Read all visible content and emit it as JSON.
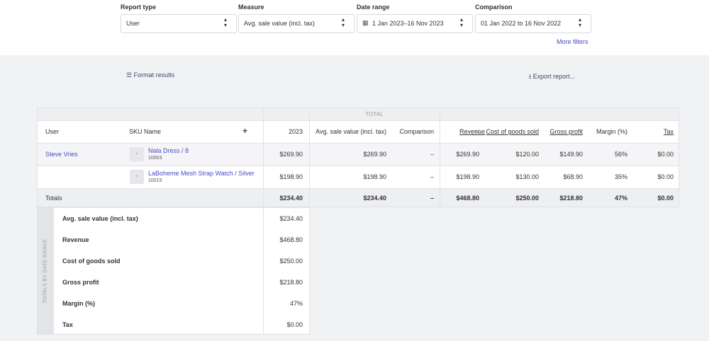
{
  "filters": [
    {
      "label": "Report type",
      "value": "User"
    },
    {
      "label": "Measure",
      "value": "Avg. sale value (incl. tax)"
    },
    {
      "label": "Date range",
      "value": "1 Jan 2023–16 Nov 2023"
    },
    {
      "label": "Comparison",
      "value": "01 Jan 2022 to 16 Nov 2022"
    }
  ],
  "more_filters": "More filters",
  "format_results": "Format results",
  "export_report": "Export report...",
  "table": {
    "group_header": "TOTAL",
    "columns": [
      "User",
      "SKU Name",
      "2023",
      "Avg. sale value (incl. tax)",
      "Comparison",
      "Revenue",
      "Cost of goods sold",
      "Gross profit",
      "Margin (%)",
      "Tax"
    ],
    "rows": [
      {
        "user": "Steve Vries",
        "sku_name": "Nala Dress / 8",
        "sku_code": "10003",
        "cells": [
          "$269.90",
          "$269.90",
          "–",
          "$269.90",
          "$120.00",
          "$149.90",
          "56%",
          "$0.00"
        ]
      },
      {
        "user": "",
        "sku_name": "LaBoheme Mesh Strap Watch / Silver",
        "sku_code": "10015",
        "cells": [
          "$198.90",
          "$198.90",
          "–",
          "$198.90",
          "$130.00",
          "$68.90",
          "35%",
          "$0.00"
        ]
      }
    ],
    "totals": {
      "label": "Totals",
      "cells": [
        "$234.40",
        "$234.40",
        "–",
        "$468.80",
        "$250.00",
        "$218.80",
        "47%",
        "$0.00"
      ]
    }
  },
  "totals_by_date_range": {
    "title": "TOTALS BY DATE RANGE",
    "rows": [
      {
        "label": "Avg. sale value (incl. tax)",
        "value": "$234.40"
      },
      {
        "label": "Revenue",
        "value": "$468.80"
      },
      {
        "label": "Cost of goods sold",
        "value": "$250.00"
      },
      {
        "label": "Gross profit",
        "value": "$218.80"
      },
      {
        "label": "Margin (%)",
        "value": "47%"
      },
      {
        "label": "Tax",
        "value": "$0.00"
      }
    ]
  }
}
